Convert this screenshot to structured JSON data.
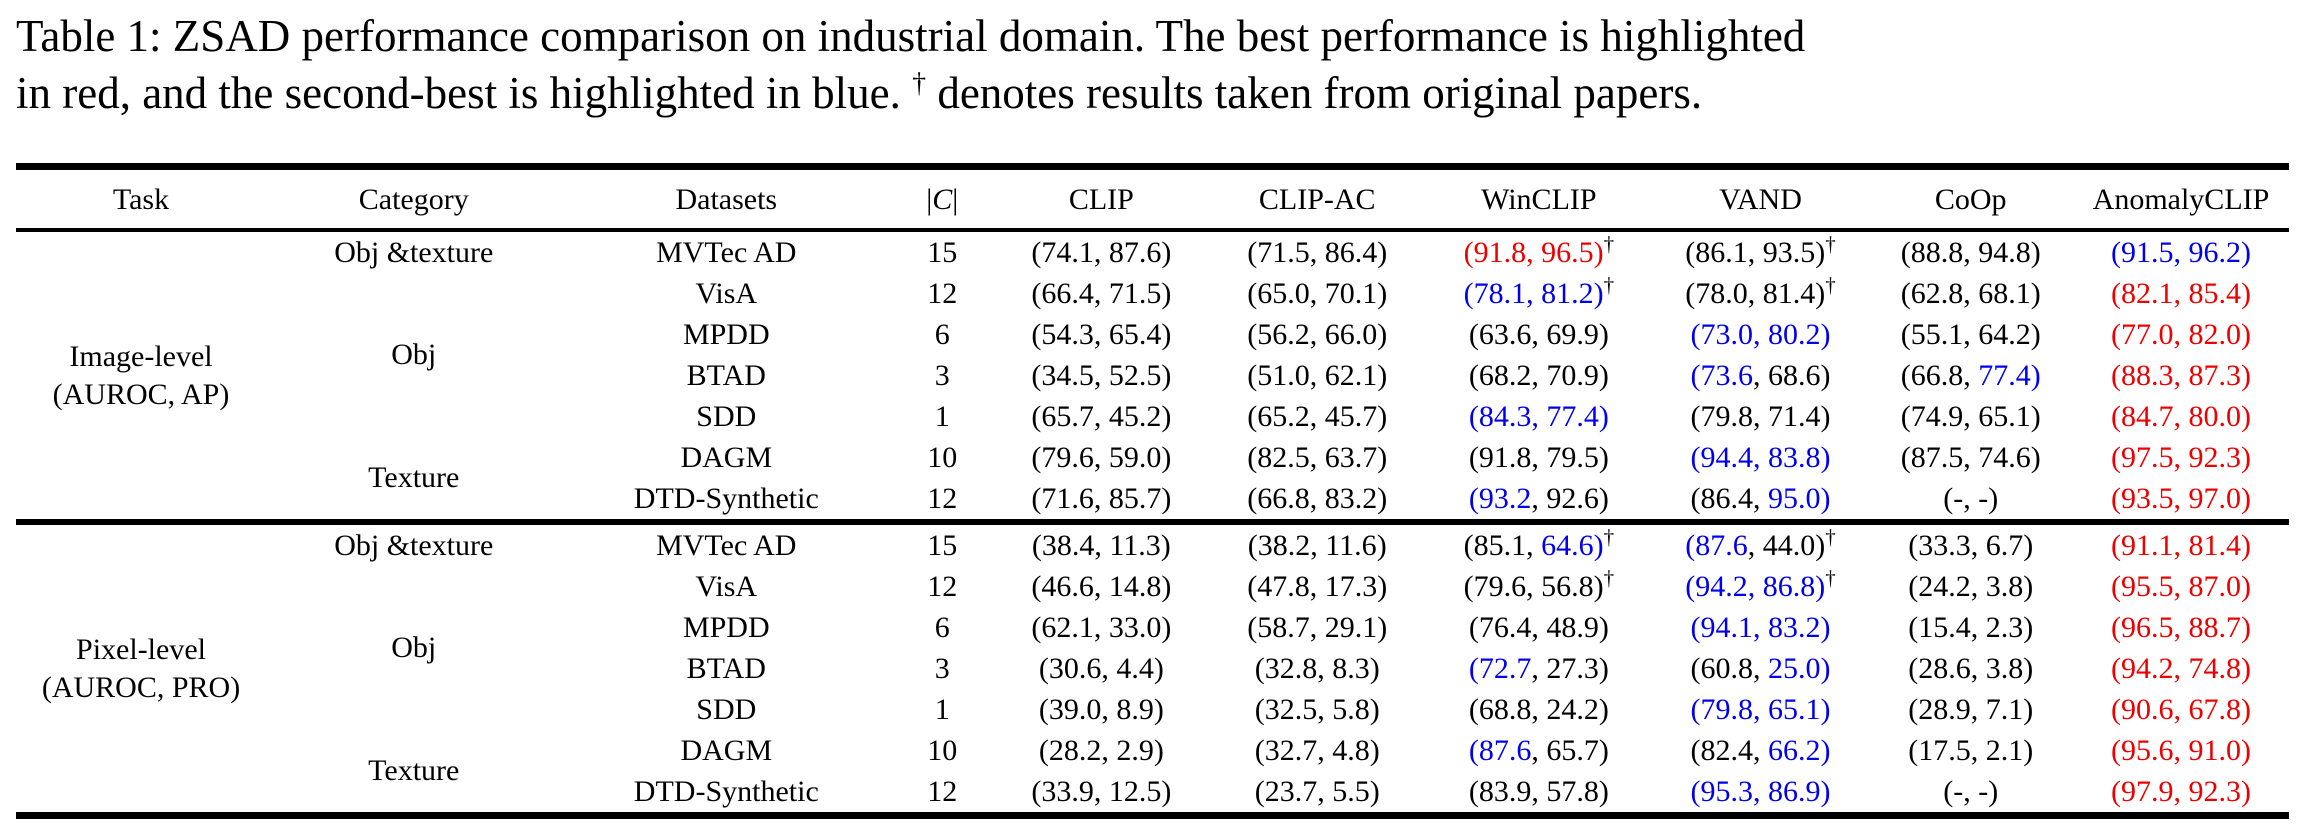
{
  "caption": {
    "line1": "Table 1: ZSAD performance comparison on industrial domain. The best performance is highlighted",
    "line2_before": "in red, and the second-best is highlighted in blue. ",
    "dagger": "†",
    "line2_after": " denotes results taken from original papers."
  },
  "colors": {
    "best": "#ee0000",
    "second": "#0000ee",
    "text": "#000000"
  },
  "table": {
    "dagger": "†",
    "columns": [
      "Task",
      "Category",
      "Datasets",
      "|C|",
      "CLIP",
      "CLIP-AC",
      "WinCLIP",
      "VAND",
      "CoOp",
      "AnomalyCLIP"
    ],
    "sections": [
      {
        "task_lines": [
          "Image-level",
          "(AUROC, AP)"
        ],
        "groups": [
          {
            "category": "Obj &texture",
            "rows": [
              {
                "dataset": "MVTec AD",
                "c": "15",
                "cells": [
                  [
                    "74.1",
                    "k",
                    "87.6",
                    "k",
                    0
                  ],
                  [
                    "71.5",
                    "k",
                    "86.4",
                    "k",
                    0
                  ],
                  [
                    "91.8",
                    "r",
                    "96.5",
                    "r",
                    1
                  ],
                  [
                    "86.1",
                    "k",
                    "93.5",
                    "k",
                    1
                  ],
                  [
                    "88.8",
                    "k",
                    "94.8",
                    "k",
                    0
                  ],
                  [
                    "91.5",
                    "b",
                    "96.2",
                    "b",
                    0
                  ]
                ]
              }
            ]
          },
          {
            "category": "Obj",
            "rows": [
              {
                "dataset": "VisA",
                "c": "12",
                "cells": [
                  [
                    "66.4",
                    "k",
                    "71.5",
                    "k",
                    0
                  ],
                  [
                    "65.0",
                    "k",
                    "70.1",
                    "k",
                    0
                  ],
                  [
                    "78.1",
                    "b",
                    "81.2",
                    "b",
                    1
                  ],
                  [
                    "78.0",
                    "k",
                    "81.4",
                    "k",
                    1
                  ],
                  [
                    "62.8",
                    "k",
                    "68.1",
                    "k",
                    0
                  ],
                  [
                    "82.1",
                    "r",
                    "85.4",
                    "r",
                    0
                  ]
                ]
              },
              {
                "dataset": "MPDD",
                "c": "6",
                "cells": [
                  [
                    "54.3",
                    "k",
                    "65.4",
                    "k",
                    0
                  ],
                  [
                    "56.2",
                    "k",
                    "66.0",
                    "k",
                    0
                  ],
                  [
                    "63.6",
                    "k",
                    "69.9",
                    "k",
                    0
                  ],
                  [
                    "73.0",
                    "b",
                    "80.2",
                    "b",
                    0
                  ],
                  [
                    "55.1",
                    "k",
                    "64.2",
                    "k",
                    0
                  ],
                  [
                    "77.0",
                    "r",
                    "82.0",
                    "r",
                    0
                  ]
                ]
              },
              {
                "dataset": "BTAD",
                "c": "3",
                "cells": [
                  [
                    "34.5",
                    "k",
                    "52.5",
                    "k",
                    0
                  ],
                  [
                    "51.0",
                    "k",
                    "62.1",
                    "k",
                    0
                  ],
                  [
                    "68.2",
                    "k",
                    "70.9",
                    "k",
                    0
                  ],
                  [
                    "73.6",
                    "b",
                    "68.6",
                    "k",
                    0
                  ],
                  [
                    "66.8",
                    "k",
                    "77.4",
                    "b",
                    0
                  ],
                  [
                    "88.3",
                    "r",
                    "87.3",
                    "r",
                    0
                  ]
                ]
              },
              {
                "dataset": "SDD",
                "c": "1",
                "cells": [
                  [
                    "65.7",
                    "k",
                    "45.2",
                    "k",
                    0
                  ],
                  [
                    "65.2",
                    "k",
                    "45.7",
                    "k",
                    0
                  ],
                  [
                    "84.3",
                    "b",
                    "77.4",
                    "b",
                    0
                  ],
                  [
                    "79.8",
                    "k",
                    "71.4",
                    "k",
                    0
                  ],
                  [
                    "74.9",
                    "k",
                    "65.1",
                    "k",
                    0
                  ],
                  [
                    "84.7",
                    "r",
                    "80.0",
                    "r",
                    0
                  ]
                ]
              }
            ]
          },
          {
            "category": "Texture",
            "rows": [
              {
                "dataset": "DAGM",
                "c": "10",
                "cells": [
                  [
                    "79.6",
                    "k",
                    "59.0",
                    "k",
                    0
                  ],
                  [
                    "82.5",
                    "k",
                    "63.7",
                    "k",
                    0
                  ],
                  [
                    "91.8",
                    "k",
                    "79.5",
                    "k",
                    0
                  ],
                  [
                    "94.4",
                    "b",
                    "83.8",
                    "b",
                    0
                  ],
                  [
                    "87.5",
                    "k",
                    "74.6",
                    "k",
                    0
                  ],
                  [
                    "97.5",
                    "r",
                    "92.3",
                    "r",
                    0
                  ]
                ]
              },
              {
                "dataset": "DTD-Synthetic",
                "c": "12",
                "cells": [
                  [
                    "71.6",
                    "k",
                    "85.7",
                    "k",
                    0
                  ],
                  [
                    "66.8",
                    "k",
                    "83.2",
                    "k",
                    0
                  ],
                  [
                    "93.2",
                    "b",
                    "92.6",
                    "k",
                    0
                  ],
                  [
                    "86.4",
                    "k",
                    "95.0",
                    "b",
                    0
                  ],
                  [
                    "-",
                    "k",
                    "-",
                    "k",
                    0
                  ],
                  [
                    "93.5",
                    "r",
                    "97.0",
                    "r",
                    0
                  ]
                ]
              }
            ]
          }
        ]
      },
      {
        "task_lines": [
          "Pixel-level",
          "(AUROC, PRO)"
        ],
        "groups": [
          {
            "category": "Obj &texture",
            "rows": [
              {
                "dataset": "MVTec AD",
                "c": "15",
                "cells": [
                  [
                    "38.4",
                    "k",
                    "11.3",
                    "k",
                    0
                  ],
                  [
                    "38.2",
                    "k",
                    "11.6",
                    "k",
                    0
                  ],
                  [
                    "85.1",
                    "k",
                    "64.6",
                    "b",
                    1
                  ],
                  [
                    "87.6",
                    "b",
                    "44.0",
                    "k",
                    1
                  ],
                  [
                    "33.3",
                    "k",
                    "6.7",
                    "k",
                    0
                  ],
                  [
                    "91.1",
                    "r",
                    "81.4",
                    "r",
                    0
                  ]
                ]
              }
            ]
          },
          {
            "category": "Obj",
            "rows": [
              {
                "dataset": "VisA",
                "c": "12",
                "cells": [
                  [
                    "46.6",
                    "k",
                    "14.8",
                    "k",
                    0
                  ],
                  [
                    "47.8",
                    "k",
                    "17.3",
                    "k",
                    0
                  ],
                  [
                    "79.6",
                    "k",
                    "56.8",
                    "k",
                    1
                  ],
                  [
                    "94.2",
                    "b",
                    "86.8",
                    "b",
                    1
                  ],
                  [
                    "24.2",
                    "k",
                    "3.8",
                    "k",
                    0
                  ],
                  [
                    "95.5",
                    "r",
                    "87.0",
                    "r",
                    0
                  ]
                ]
              },
              {
                "dataset": "MPDD",
                "c": "6",
                "cells": [
                  [
                    "62.1",
                    "k",
                    "33.0",
                    "k",
                    0
                  ],
                  [
                    "58.7",
                    "k",
                    "29.1",
                    "k",
                    0
                  ],
                  [
                    "76.4",
                    "k",
                    "48.9",
                    "k",
                    0
                  ],
                  [
                    "94.1",
                    "b",
                    "83.2",
                    "b",
                    0
                  ],
                  [
                    "15.4",
                    "k",
                    "2.3",
                    "k",
                    0
                  ],
                  [
                    "96.5",
                    "r",
                    "88.7",
                    "r",
                    0
                  ]
                ]
              },
              {
                "dataset": "BTAD",
                "c": "3",
                "cells": [
                  [
                    "30.6",
                    "k",
                    "4.4",
                    "k",
                    0
                  ],
                  [
                    "32.8",
                    "k",
                    "8.3",
                    "k",
                    0
                  ],
                  [
                    "72.7",
                    "b",
                    "27.3",
                    "k",
                    0
                  ],
                  [
                    "60.8",
                    "k",
                    "25.0",
                    "b",
                    0
                  ],
                  [
                    "28.6",
                    "k",
                    "3.8",
                    "k",
                    0
                  ],
                  [
                    "94.2",
                    "r",
                    "74.8",
                    "r",
                    0
                  ]
                ]
              },
              {
                "dataset": "SDD",
                "c": "1",
                "cells": [
                  [
                    "39.0",
                    "k",
                    "8.9",
                    "k",
                    0
                  ],
                  [
                    "32.5",
                    "k",
                    "5.8",
                    "k",
                    0
                  ],
                  [
                    "68.8",
                    "k",
                    "24.2",
                    "k",
                    0
                  ],
                  [
                    "79.8",
                    "b",
                    "65.1",
                    "b",
                    0
                  ],
                  [
                    "28.9",
                    "k",
                    "7.1",
                    "k",
                    0
                  ],
                  [
                    "90.6",
                    "r",
                    "67.8",
                    "r",
                    0
                  ]
                ]
              }
            ]
          },
          {
            "category": "Texture",
            "rows": [
              {
                "dataset": "DAGM",
                "c": "10",
                "cells": [
                  [
                    "28.2",
                    "k",
                    "2.9",
                    "k",
                    0
                  ],
                  [
                    "32.7",
                    "k",
                    "4.8",
                    "k",
                    0
                  ],
                  [
                    "87.6",
                    "b",
                    "65.7",
                    "k",
                    0
                  ],
                  [
                    "82.4",
                    "k",
                    "66.2",
                    "b",
                    0
                  ],
                  [
                    "17.5",
                    "k",
                    "2.1",
                    "k",
                    0
                  ],
                  [
                    "95.6",
                    "r",
                    "91.0",
                    "r",
                    0
                  ]
                ]
              },
              {
                "dataset": "DTD-Synthetic",
                "c": "12",
                "cells": [
                  [
                    "33.9",
                    "k",
                    "12.5",
                    "k",
                    0
                  ],
                  [
                    "23.7",
                    "k",
                    "5.5",
                    "k",
                    0
                  ],
                  [
                    "83.9",
                    "k",
                    "57.8",
                    "k",
                    0
                  ],
                  [
                    "95.3",
                    "b",
                    "86.9",
                    "b",
                    0
                  ],
                  [
                    "-",
                    "k",
                    "-",
                    "k",
                    0
                  ],
                  [
                    "97.9",
                    "r",
                    "92.3",
                    "r",
                    0
                  ]
                ]
              }
            ]
          }
        ]
      }
    ]
  }
}
